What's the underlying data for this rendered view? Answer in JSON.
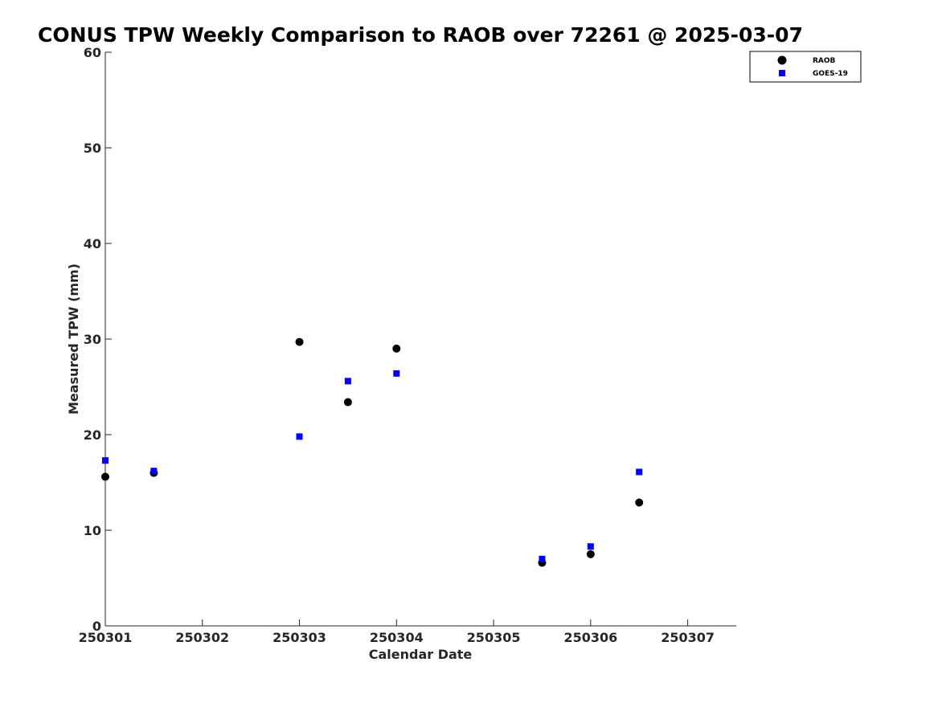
{
  "chart_data": {
    "type": "scatter",
    "title": "CONUS TPW Weekly Comparison to RAOB over 72261 @ 2025-03-07",
    "xlabel": "Calendar Date",
    "ylabel": "Measured TPW (mm)",
    "xlim": [
      250301,
      250307.5
    ],
    "ylim": [
      0,
      60
    ],
    "xticks": [
      250301,
      250302,
      250303,
      250304,
      250305,
      250306,
      250307
    ],
    "xtick_labels": [
      "250301",
      "250302",
      "250303",
      "250304",
      "250305",
      "250306",
      "250307"
    ],
    "yticks": [
      0,
      10,
      20,
      30,
      40,
      50,
      60
    ],
    "ytick_labels": [
      "0",
      "10",
      "20",
      "30",
      "40",
      "50",
      "60"
    ],
    "grid": false,
    "legend_position": "top-right",
    "series": [
      {
        "name": "RAOB",
        "marker": "circle",
        "color": "#000000",
        "points": [
          {
            "x": 250301.0,
            "y": 15.6
          },
          {
            "x": 250301.5,
            "y": 16.0
          },
          {
            "x": 250303.0,
            "y": 29.7
          },
          {
            "x": 250303.5,
            "y": 23.4
          },
          {
            "x": 250304.0,
            "y": 29.0
          },
          {
            "x": 250305.5,
            "y": 6.6
          },
          {
            "x": 250306.0,
            "y": 7.5
          },
          {
            "x": 250306.5,
            "y": 12.9
          }
        ]
      },
      {
        "name": "GOES-19",
        "marker": "square",
        "color": "#0000ff",
        "points": [
          {
            "x": 250301.0,
            "y": 17.3
          },
          {
            "x": 250301.5,
            "y": 16.2
          },
          {
            "x": 250303.0,
            "y": 19.8
          },
          {
            "x": 250303.5,
            "y": 25.6
          },
          {
            "x": 250304.0,
            "y": 26.4
          },
          {
            "x": 250305.5,
            "y": 7.0
          },
          {
            "x": 250306.0,
            "y": 8.3
          },
          {
            "x": 250306.5,
            "y": 16.1
          }
        ]
      }
    ]
  }
}
